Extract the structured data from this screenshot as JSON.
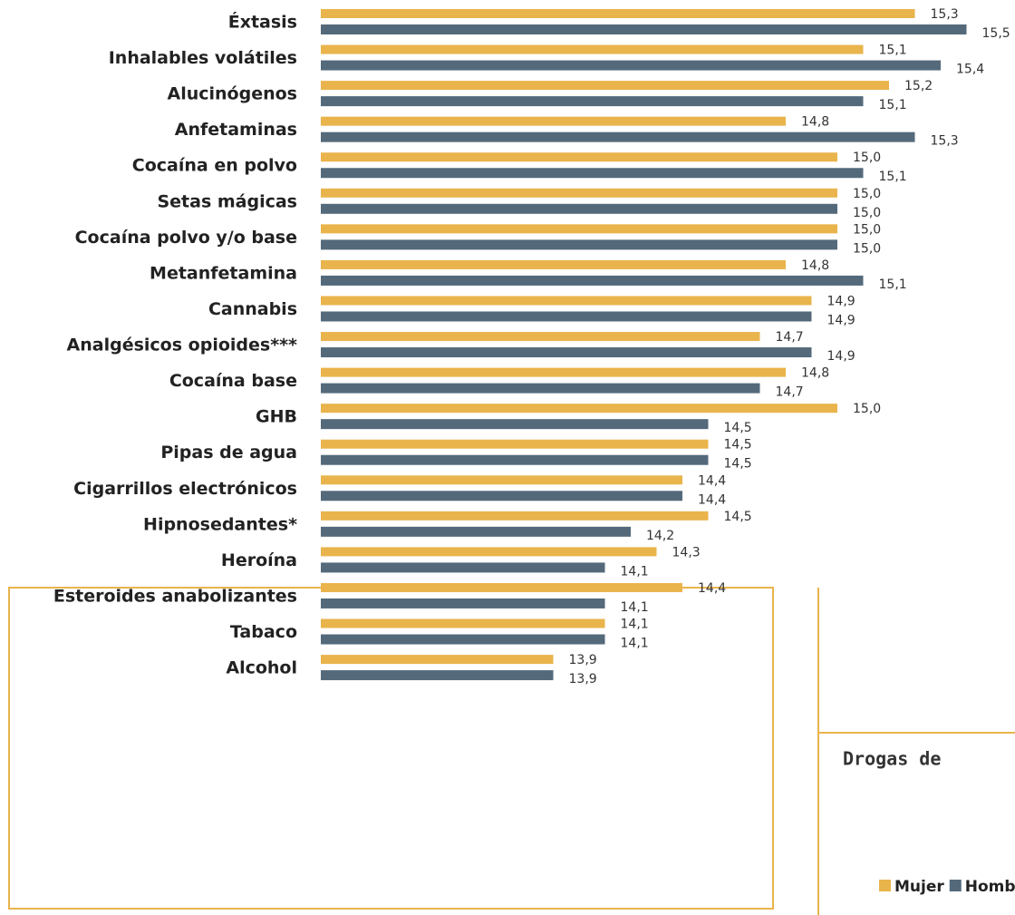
{
  "chart_data": {
    "type": "bar",
    "orientation": "horizontal",
    "annotation": "Drogas de",
    "categories": [
      "Éxtasis",
      "Inhalables volátiles",
      "Alucinógenos",
      "Anfetaminas",
      "Cocaína en polvo",
      "Setas mágicas",
      "Cocaína polvo y/o base",
      "Metanfetamina",
      "Cannabis",
      "Analgésicos opioides***",
      "Cocaína base",
      "GHB",
      "Pipas de agua",
      "Cigarrillos electrónicos",
      "Hipnosedantes*",
      "Heroína",
      "Esteroides anabolizantes",
      "Tabaco",
      "Alcohol"
    ],
    "series": [
      {
        "name": "Mujer",
        "color": "#E9B44C",
        "values": [
          15.3,
          15.1,
          15.2,
          14.8,
          15.0,
          15.0,
          15.0,
          14.8,
          14.9,
          14.7,
          14.8,
          15.0,
          14.5,
          14.4,
          14.5,
          14.3,
          14.4,
          14.1,
          13.9
        ],
        "value_labels": [
          "15,3",
          "15,1",
          "15,2",
          "14,8",
          "15,0",
          "15,0",
          "15,0",
          "14,8",
          "14,9",
          "14,7",
          "14,8",
          "15,0",
          "14,5",
          "14,4",
          "14,5",
          "14,3",
          "14,4",
          "14,1",
          "13,9"
        ]
      },
      {
        "name": "Hombre",
        "color": "#546A7B",
        "values": [
          15.5,
          15.4,
          15.1,
          15.3,
          15.1,
          15.0,
          15.0,
          15.1,
          14.9,
          14.9,
          14.7,
          14.5,
          14.5,
          14.4,
          14.2,
          14.1,
          14.1,
          14.1,
          13.9
        ],
        "value_labels": [
          "15,5",
          "15,4",
          "15,1",
          "15,3",
          "15,1",
          "15,0",
          "15,0",
          "15,1",
          "14,9",
          "14,9",
          "14,7",
          "14,5",
          "14,5",
          "14,4",
          "14,2",
          "14,1",
          "14,1",
          "14,1",
          "13,9"
        ]
      }
    ],
    "xlim": [
      13,
      15.6
    ]
  }
}
